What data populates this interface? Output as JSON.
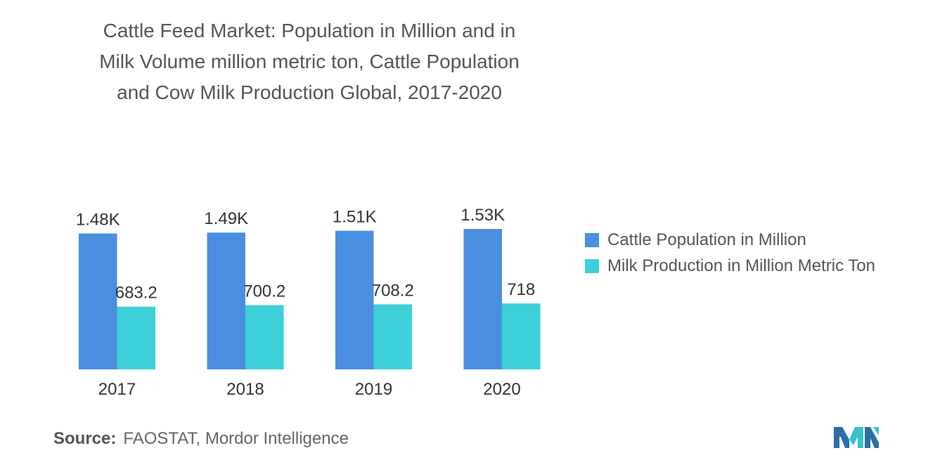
{
  "title": "Cattle Feed Market: Population in Million and in\nMilk Volume million metric ton, Cattle Population\nand Cow Milk Production Global, 2017-2020",
  "source_label": "Source:",
  "source_text": "FAOSTAT, Mordor Intelligence",
  "colors": {
    "series1": "#4a8fe0",
    "series2": "#3dd0d8",
    "logo_left": "#2d6ea8",
    "logo_right": "#38bfc9"
  },
  "chart_data": {
    "type": "bar",
    "categories": [
      "2017",
      "2018",
      "2019",
      "2020"
    ],
    "series": [
      {
        "name": "Cattle Population in Million",
        "values": [
          1480,
          1490,
          1510,
          1530
        ],
        "labels": [
          "1.48K",
          "1.49K",
          "1.51K",
          "1.53K"
        ]
      },
      {
        "name": "Milk Production in Million Metric Ton",
        "values": [
          683.2,
          700.2,
          708.2,
          718
        ],
        "labels": [
          "683.2",
          "700.2",
          "708.2",
          "718"
        ]
      }
    ],
    "ylim": [
      0,
      1530
    ],
    "grid": false,
    "legend_position": "right"
  }
}
